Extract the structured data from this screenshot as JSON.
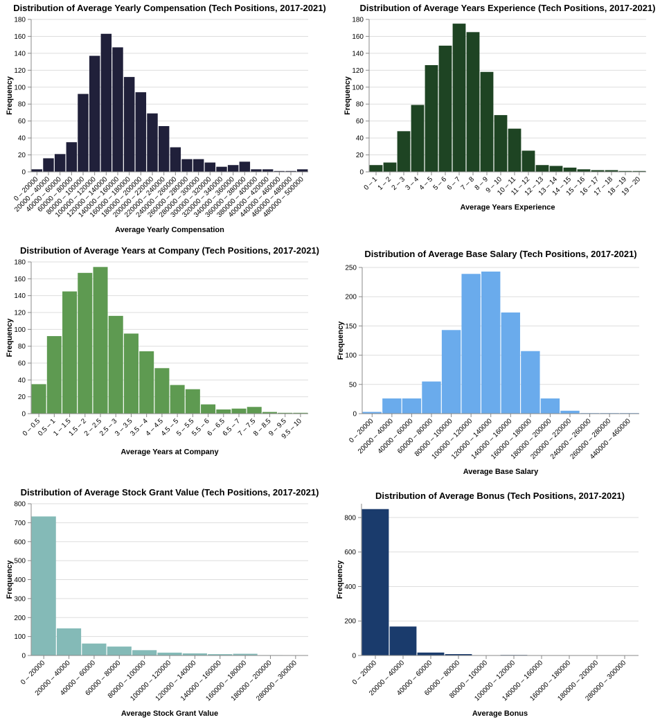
{
  "chart_data": [
    {
      "type": "bar",
      "title": "Distribution of Average Yearly Compensation (Tech Positions, 2017-2021)",
      "xlabel": "Average Yearly Compensation",
      "ylabel": "Frequency",
      "color": "#20203a",
      "ylim": [
        0,
        180
      ],
      "yticks": [
        0,
        20,
        40,
        60,
        80,
        100,
        120,
        140,
        160,
        180
      ],
      "categories": [
        "0 – 20000",
        "20000 – 40000",
        "40000 – 60000",
        "60000 – 80000",
        "80000 – 100000",
        "100000 – 120000",
        "120000 – 140000",
        "140000 – 160000",
        "160000 – 180000",
        "180000 – 200000",
        "200000 – 220000",
        "220000 – 240000",
        "240000 – 260000",
        "260000 – 280000",
        "280000 – 300000",
        "300000 – 320000",
        "320000 – 340000",
        "340000 – 360000",
        "360000 – 380000",
        "380000 – 400000",
        "400000 – 420000",
        "440000 – 460000",
        "460000 – 480000",
        "480000 – 500000"
      ],
      "values": [
        3,
        16,
        21,
        35,
        92,
        137,
        163,
        147,
        112,
        94,
        69,
        54,
        29,
        15,
        15,
        11,
        6,
        8,
        12,
        3,
        3,
        1,
        1,
        3
      ]
    },
    {
      "type": "bar",
      "title": "Distribution of Average Years Experience (Tech Positions, 2017-2021)",
      "xlabel": "Average Years Experience",
      "ylabel": "Frequency",
      "color": "#1e4423",
      "ylim": [
        0,
        180
      ],
      "yticks": [
        0,
        20,
        40,
        60,
        80,
        100,
        120,
        140,
        160,
        180
      ],
      "categories": [
        "0 – 1",
        "1 – 2",
        "2 – 3",
        "3 – 4",
        "4 – 5",
        "5 – 6",
        "6 – 7",
        "7 – 8",
        "8 – 9",
        "9 – 10",
        "10 – 11",
        "11 – 12",
        "12 – 13",
        "13 – 14",
        "14 – 15",
        "15 – 16",
        "16 – 17",
        "17 – 18",
        "18 – 19",
        "19 – 20"
      ],
      "values": [
        8,
        11,
        48,
        79,
        126,
        149,
        175,
        165,
        118,
        67,
        51,
        25,
        8,
        7,
        5,
        3,
        2,
        2,
        1,
        1
      ]
    },
    {
      "type": "bar",
      "title": "Distribution of Average Years at Company (Tech Positions, 2017-2021)",
      "xlabel": "Average Years at Company",
      "ylabel": "Frequency",
      "color": "#5e9a51",
      "ylim": [
        0,
        180
      ],
      "yticks": [
        0,
        20,
        40,
        60,
        80,
        100,
        120,
        140,
        160,
        180
      ],
      "categories": [
        "0 – 0.5",
        "0.5 – 1",
        "1 – 1.5",
        "1.5 – 2",
        "2 – 2.5",
        "2.5 – 3",
        "3 – 3.5",
        "3.5 – 4",
        "4 – 4.5",
        "4.5 – 5",
        "5 – 5.5",
        "5.5 – 6",
        "6 – 6.5",
        "6.5 – 7",
        "7 – 7.5",
        "8 – 8.5",
        "9 – 9.5",
        "9.5 – 10"
      ],
      "values": [
        35,
        92,
        145,
        167,
        174,
        116,
        95,
        74,
        54,
        34,
        29,
        11,
        5,
        6,
        8,
        2,
        1,
        1
      ]
    },
    {
      "type": "bar",
      "title": "Distribution of Average Base Salary (Tech Positions, 2017-2021)",
      "xlabel": "Average Base Salary",
      "ylabel": "Frequency",
      "color": "#6aabec",
      "ylim": [
        0,
        250
      ],
      "yticks": [
        0,
        50,
        100,
        150,
        200,
        250
      ],
      "categories": [
        "0 – 20000",
        "20000 – 40000",
        "40000 – 60000",
        "60000 – 80000",
        "80000 – 100000",
        "100000 – 120000",
        "120000 – 140000",
        "140000 – 160000",
        "160000 – 180000",
        "180000 – 200000",
        "200000 – 220000",
        "240000 – 260000",
        "260000 – 280000",
        "440000 – 460000"
      ],
      "values": [
        3,
        26,
        26,
        55,
        143,
        239,
        243,
        173,
        107,
        26,
        5,
        1,
        1,
        1
      ]
    },
    {
      "type": "bar",
      "title": "Distribution of Average Stock Grant Value (Tech Positions, 2017-2021)",
      "xlabel": "Average Stock Grant Value",
      "ylabel": "Frequency",
      "color": "#84bab7",
      "ylim": [
        0,
        800
      ],
      "yticks": [
        0,
        100,
        200,
        300,
        400,
        500,
        600,
        700,
        800
      ],
      "categories": [
        "0 – 20000",
        "20000 – 40000",
        "40000 – 60000",
        "60000 – 80000",
        "80000 – 100000",
        "100000 – 120000",
        "120000 – 140000",
        "140000 – 160000",
        "160000 – 180000",
        "180000 – 200000",
        "280000 – 300000"
      ],
      "values": [
        733,
        143,
        63,
        47,
        28,
        15,
        11,
        7,
        9,
        2,
        1
      ]
    },
    {
      "type": "bar",
      "title": "Distribution of Average Bonus (Tech Positions, 2017-2021)",
      "xlabel": "Average Bonus",
      "ylabel": "Frequency",
      "color": "#1a3b6c",
      "ylim": [
        0,
        880
      ],
      "yticks": [
        0,
        200,
        400,
        600,
        800
      ],
      "categories": [
        "0 – 20000",
        "20000 – 40000",
        "40000 – 60000",
        "60000 – 80000",
        "80000 – 100000",
        "100000 – 120000",
        "140000 – 160000",
        "160000 – 180000",
        "180000 – 200000",
        "280000 – 300000"
      ],
      "values": [
        849,
        168,
        17,
        8,
        2,
        3,
        1,
        1,
        1,
        1
      ]
    }
  ]
}
